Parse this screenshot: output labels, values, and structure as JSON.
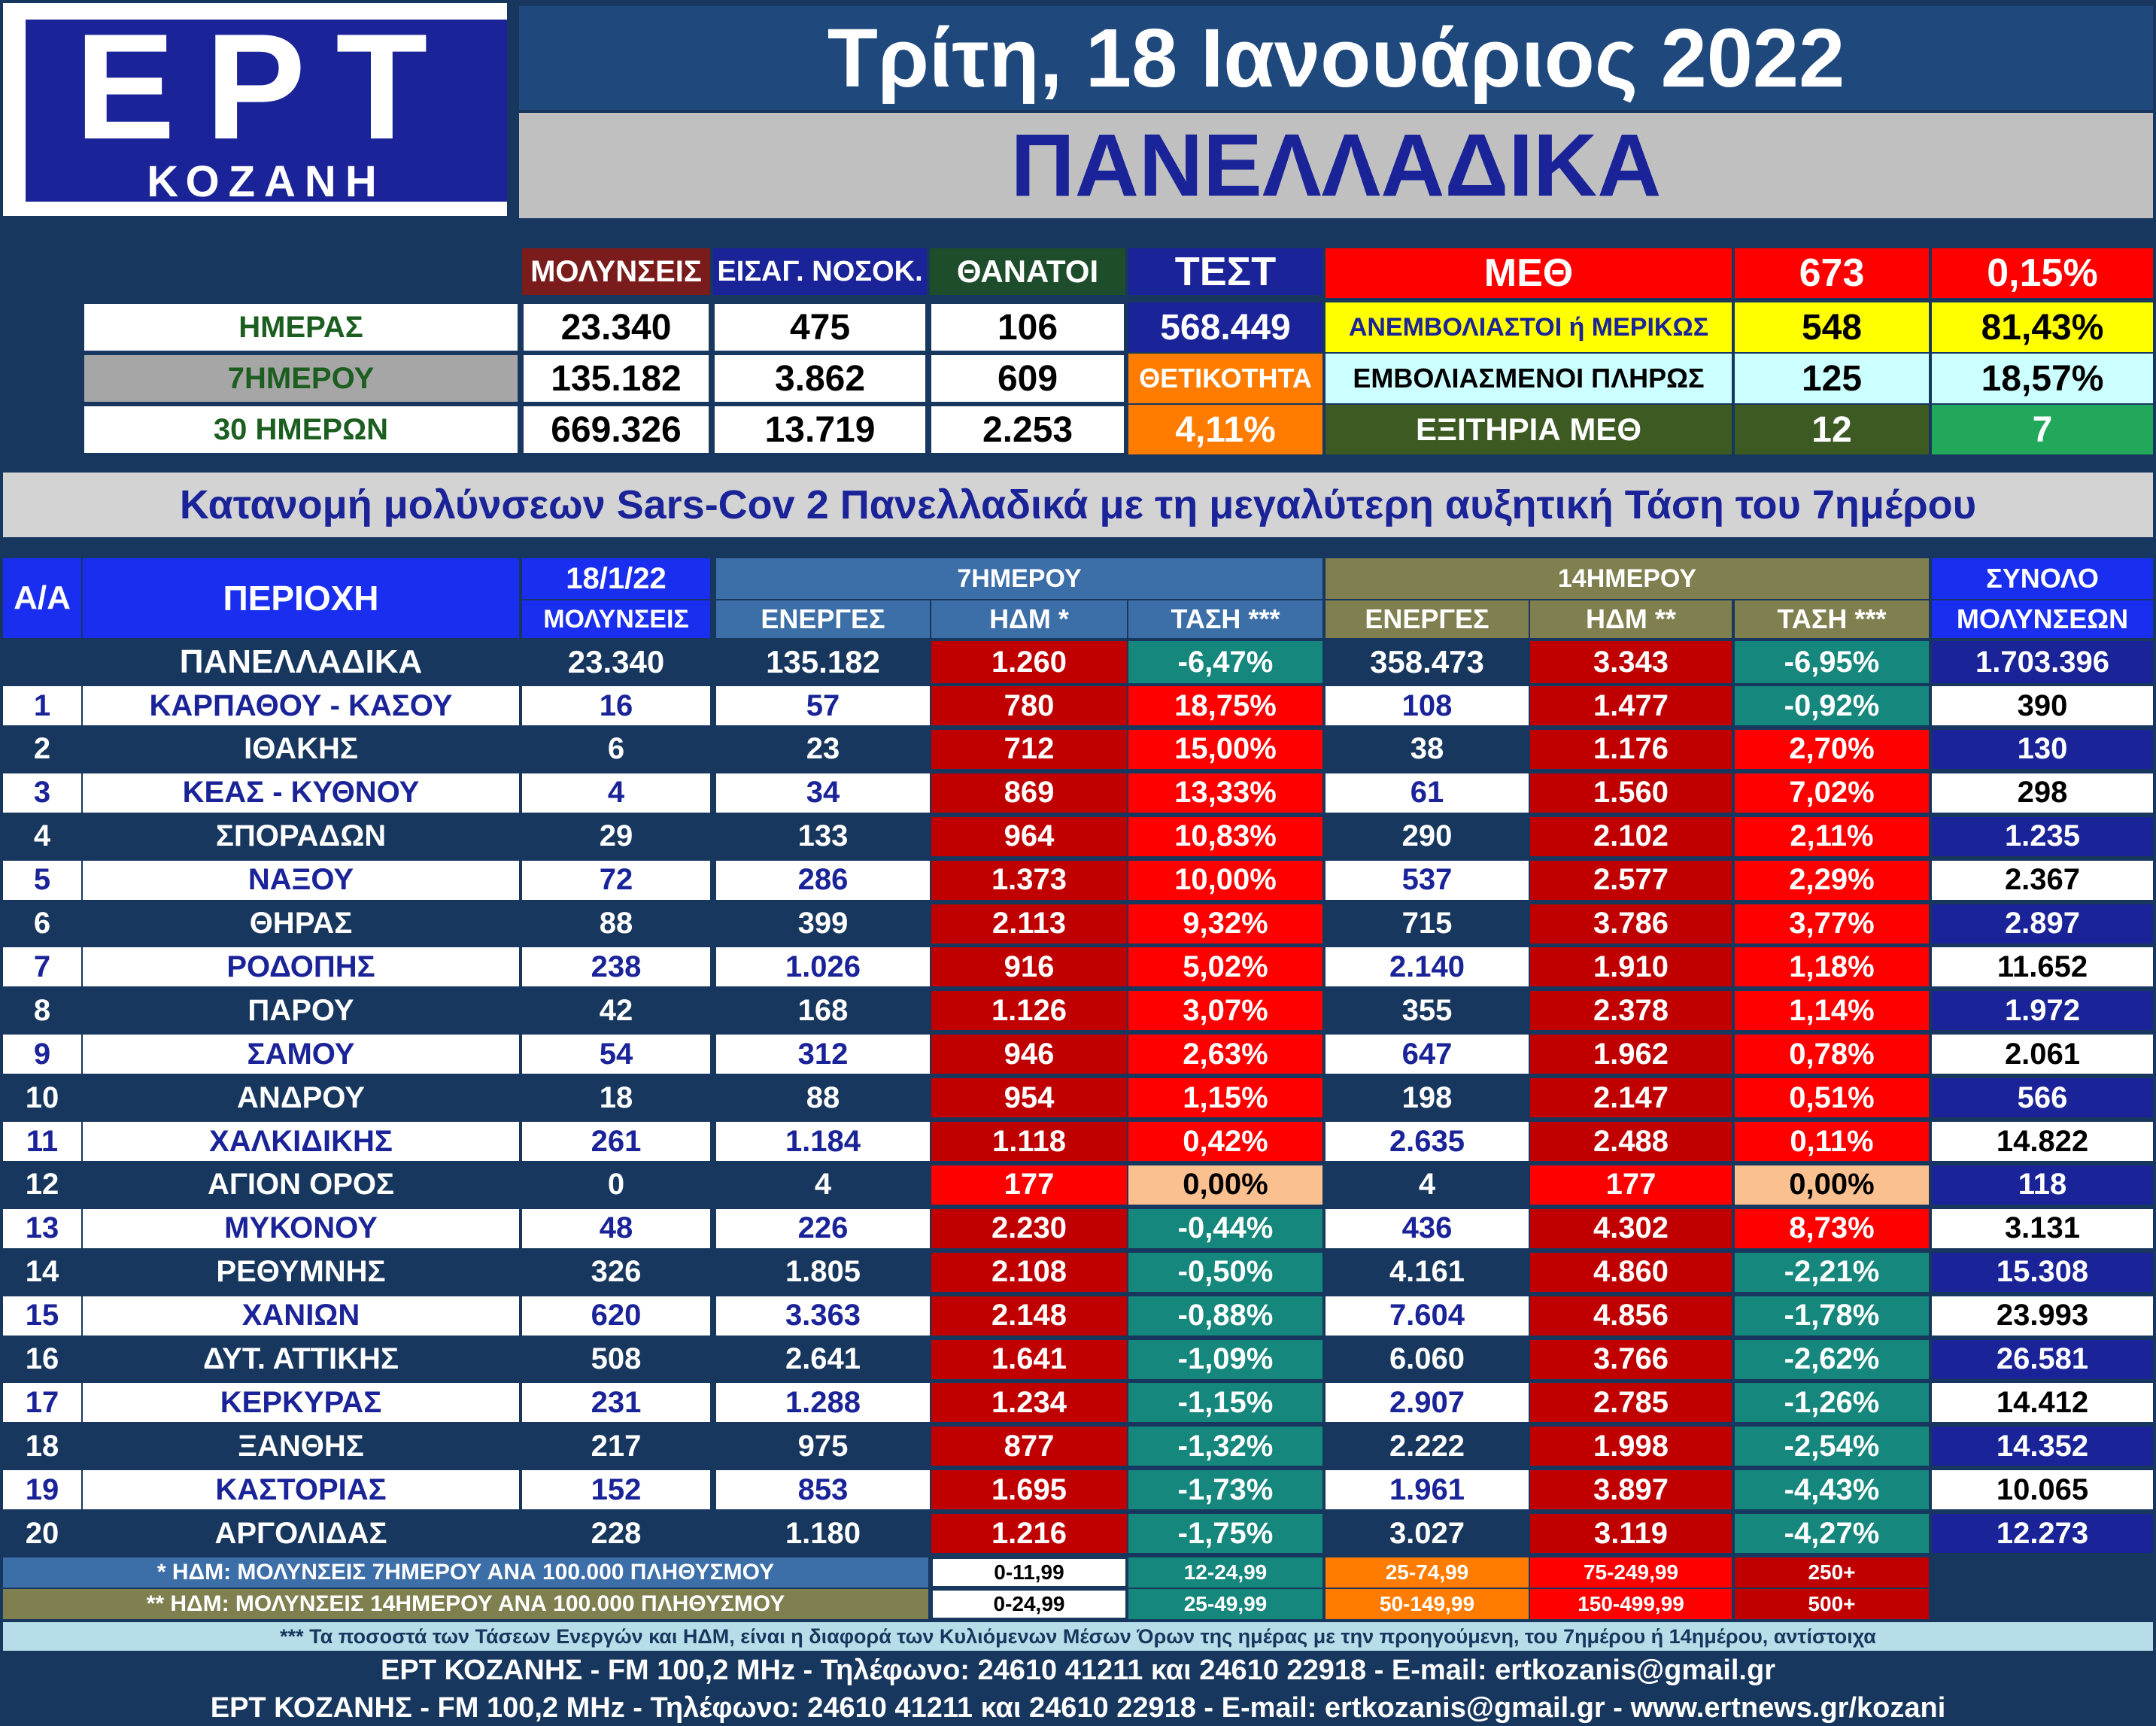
{
  "logo": {
    "main": "ΕΡΤ",
    "sub": "ΚΟΖΑΝΗ"
  },
  "header": {
    "date": "Τρίτη, 18 Ιανουάριος 2022",
    "title": "ΠΑΝΕΛΛΑΔΙΚΑ"
  },
  "summary": {
    "headers": [
      "ΜΟΛΥΝΣΕΙΣ",
      "ΕΙΣΑΓ. ΝΟΣΟΚ.",
      "ΘΑΝΑΤΟΙ",
      "ΤΕΣΤ"
    ],
    "rows": [
      {
        "label": "ΗΜΕΡΑΣ",
        "values": [
          "23.340",
          "475",
          "106"
        ]
      },
      {
        "label": "7ΗΜΕΡΟΥ",
        "values": [
          "135.182",
          "3.862",
          "609"
        ]
      },
      {
        "label": "30 ΗΜΕΡΩΝ",
        "values": [
          "669.326",
          "13.719",
          "2.253"
        ]
      }
    ],
    "tests": "568.449",
    "positivity_label": "ΘΕΤΙΚΟΤΗΤΑ",
    "positivity": "4,11%",
    "icu": [
      {
        "label": "ΜΕΘ",
        "count": "673",
        "pct": "0,15%"
      },
      {
        "label": "ΑΝΕΜΒΟΛΙΑΣΤΟΙ ή ΜΕΡΙΚΩΣ",
        "count": "548",
        "pct": "81,43%"
      },
      {
        "label": "ΕΜΒΟΛΙΑΣΜΕΝΟΙ ΠΛΗΡΩΣ",
        "count": "125",
        "pct": "18,57%"
      },
      {
        "label": "ΕΞΙΤΗΡΙΑ ΜΕΘ",
        "count": "12",
        "pct": "7"
      }
    ]
  },
  "subtitle": "Κατανομή μολύνσεων Sars-Cov 2 Πανελλαδικά με τη μεγαλύτερη αυξητική Τάση του 7ημέρου",
  "table": {
    "h_aa": "Α/Α",
    "h_area": "ΠΕΡΙΟΧΗ",
    "h_date": "18/1/22",
    "h_infections": "ΜΟΛΥΝΣΕΙΣ",
    "h_7day": "7ΗΜΕΡΟΥ",
    "h_14day": "14ΗΜΕΡΟΥ",
    "h_active": "ΕΝΕΡΓΕΣ",
    "h_hdm7": "ΗΔΜ *",
    "h_hdm14": "ΗΔΜ **",
    "h_trend": "ΤΑΣΗ ***",
    "h_total1": "ΣΥΝΟΛΟ",
    "h_total2": "ΜΟΛΥΝΣΕΩΝ",
    "national": {
      "name": "ΠΑΝΕΛΛΑΔΙΚΑ",
      "inf": "23.340",
      "a7": "135.182",
      "h7": "1.260",
      "t7": "-6,47%",
      "a14": "358.473",
      "h14": "3.343",
      "t14": "-6,95%",
      "total": "1.703.396"
    },
    "rows": [
      {
        "n": "1",
        "name": "ΚΑΡΠΑΘΟΥ - ΚΑΣΟΥ",
        "inf": "16",
        "a7": "57",
        "h7": "780",
        "t7": "18,75%",
        "a14": "108",
        "h14": "1.477",
        "t14": "-0,92%",
        "total": "390"
      },
      {
        "n": "2",
        "name": "ΙΘΑΚΗΣ",
        "inf": "6",
        "a7": "23",
        "h7": "712",
        "t7": "15,00%",
        "a14": "38",
        "h14": "1.176",
        "t14": "2,70%",
        "total": "130"
      },
      {
        "n": "3",
        "name": "ΚΕΑΣ - ΚΥΘΝΟΥ",
        "inf": "4",
        "a7": "34",
        "h7": "869",
        "t7": "13,33%",
        "a14": "61",
        "h14": "1.560",
        "t14": "7,02%",
        "total": "298"
      },
      {
        "n": "4",
        "name": "ΣΠΟΡΑΔΩΝ",
        "inf": "29",
        "a7": "133",
        "h7": "964",
        "t7": "10,83%",
        "a14": "290",
        "h14": "2.102",
        "t14": "2,11%",
        "total": "1.235"
      },
      {
        "n": "5",
        "name": "ΝΑΞΟΥ",
        "inf": "72",
        "a7": "286",
        "h7": "1.373",
        "t7": "10,00%",
        "a14": "537",
        "h14": "2.577",
        "t14": "2,29%",
        "total": "2.367"
      },
      {
        "n": "6",
        "name": "ΘΗΡΑΣ",
        "inf": "88",
        "a7": "399",
        "h7": "2.113",
        "t7": "9,32%",
        "a14": "715",
        "h14": "3.786",
        "t14": "3,77%",
        "total": "2.897"
      },
      {
        "n": "7",
        "name": "ΡΟΔΟΠΗΣ",
        "inf": "238",
        "a7": "1.026",
        "h7": "916",
        "t7": "5,02%",
        "a14": "2.140",
        "h14": "1.910",
        "t14": "1,18%",
        "total": "11.652"
      },
      {
        "n": "8",
        "name": "ΠΑΡΟΥ",
        "inf": "42",
        "a7": "168",
        "h7": "1.126",
        "t7": "3,07%",
        "a14": "355",
        "h14": "2.378",
        "t14": "1,14%",
        "total": "1.972"
      },
      {
        "n": "9",
        "name": "ΣΑΜΟΥ",
        "inf": "54",
        "a7": "312",
        "h7": "946",
        "t7": "2,63%",
        "a14": "647",
        "h14": "1.962",
        "t14": "0,78%",
        "total": "2.061"
      },
      {
        "n": "10",
        "name": "ΑΝΔΡΟΥ",
        "inf": "18",
        "a7": "88",
        "h7": "954",
        "t7": "1,15%",
        "a14": "198",
        "h14": "2.147",
        "t14": "0,51%",
        "total": "566"
      },
      {
        "n": "11",
        "name": "ΧΑΛΚΙΔΙΚΗΣ",
        "inf": "261",
        "a7": "1.184",
        "h7": "1.118",
        "t7": "0,42%",
        "a14": "2.635",
        "h14": "2.488",
        "t14": "0,11%",
        "total": "14.822"
      },
      {
        "n": "12",
        "name": "ΑΓΙΟΝ ΟΡΟΣ",
        "inf": "0",
        "a7": "4",
        "h7": "177",
        "t7": "0,00%",
        "a14": "4",
        "h14": "177",
        "t14": "0,00%",
        "total": "118"
      },
      {
        "n": "13",
        "name": "ΜΥΚΟΝΟΥ",
        "inf": "48",
        "a7": "226",
        "h7": "2.230",
        "t7": "-0,44%",
        "a14": "436",
        "h14": "4.302",
        "t14": "8,73%",
        "total": "3.131"
      },
      {
        "n": "14",
        "name": "ΡΕΘΥΜΝΗΣ",
        "inf": "326",
        "a7": "1.805",
        "h7": "2.108",
        "t7": "-0,50%",
        "a14": "4.161",
        "h14": "4.860",
        "t14": "-2,21%",
        "total": "15.308"
      },
      {
        "n": "15",
        "name": "ΧΑΝΙΩΝ",
        "inf": "620",
        "a7": "3.363",
        "h7": "2.148",
        "t7": "-0,88%",
        "a14": "7.604",
        "h14": "4.856",
        "t14": "-1,78%",
        "total": "23.993"
      },
      {
        "n": "16",
        "name": "ΔΥΤ. ΑΤΤΙΚΗΣ",
        "inf": "508",
        "a7": "2.641",
        "h7": "1.641",
        "t7": "-1,09%",
        "a14": "6.060",
        "h14": "3.766",
        "t14": "-2,62%",
        "total": "26.581"
      },
      {
        "n": "17",
        "name": "ΚΕΡΚΥΡΑΣ",
        "inf": "231",
        "a7": "1.288",
        "h7": "1.234",
        "t7": "-1,15%",
        "a14": "2.907",
        "h14": "2.785",
        "t14": "-1,26%",
        "total": "14.412"
      },
      {
        "n": "18",
        "name": "ΞΑΝΘΗΣ",
        "inf": "217",
        "a7": "975",
        "h7": "877",
        "t7": "-1,32%",
        "a14": "2.222",
        "h14": "1.998",
        "t14": "-2,54%",
        "total": "14.352"
      },
      {
        "n": "19",
        "name": "ΚΑΣΤΟΡΙΑΣ",
        "inf": "152",
        "a7": "853",
        "h7": "1.695",
        "t7": "-1,73%",
        "a14": "1.961",
        "h14": "3.897",
        "t14": "-4,43%",
        "total": "10.065"
      },
      {
        "n": "20",
        "name": "ΑΡΓΟΛΙΔΑΣ",
        "inf": "228",
        "a7": "1.180",
        "h7": "1.216",
        "t7": "-1,75%",
        "a14": "3.027",
        "h14": "3.119",
        "t14": "-4,27%",
        "total": "12.273"
      }
    ]
  },
  "legend": {
    "row1": {
      "label": "* ΗΔΜ: ΜΟΛΥΝΣΕΙΣ 7ΗΜΕΡΟΥ ΑΝΑ 100.000 ΠΛΗΘΥΣΜΟΥ",
      "bands": [
        "0-11,99",
        "12-24,99",
        "25-74,99",
        "75-249,99",
        "250+"
      ]
    },
    "row2": {
      "label": "** ΗΔΜ: ΜΟΛΥΝΣΕΙΣ 14ΗΜΕΡΟΥ ΑΝΑ 100.000 ΠΛΗΘΥΣΜΟΥ",
      "bands": [
        "0-24,99",
        "25-49,99",
        "50-149,99",
        "150-499,99",
        "500+"
      ]
    }
  },
  "footer": {
    "note": "*** Τα ποσοστά των Τάσεων Ενεργών και ΗΔΜ, είναι η διαφορά των Κυλιόμενων Μέσων Όρων της ημέρας με την προηγούμενη, του 7ημέρου ή 14ημέρου, αντίστοιχα",
    "line1": "ΕΡΤ ΚΟΖΑΝΗΣ - FM 100,2 MHz - Τηλέφωνο:  24610 41211 και 24610 22918 - E-mail: ertkozanis@gmail.gr",
    "line2": "ΕΡΤ ΚΟΖΑΝΗΣ - FM 100,2 MHz - Τηλέφωνο:  24610 41211 και 24610 22918 - E-mail: ertkozanis@gmail.gr - www.ertnews.gr/kozani"
  },
  "colors": {
    "navy": "#17375e",
    "logo_blue": "#1a2398",
    "hdm_red": "#c00000",
    "trend_red": "#ff0000",
    "trend_teal": "#16877c",
    "trend_peach": "#fac090",
    "positivity_orange": "#ff7c00"
  }
}
